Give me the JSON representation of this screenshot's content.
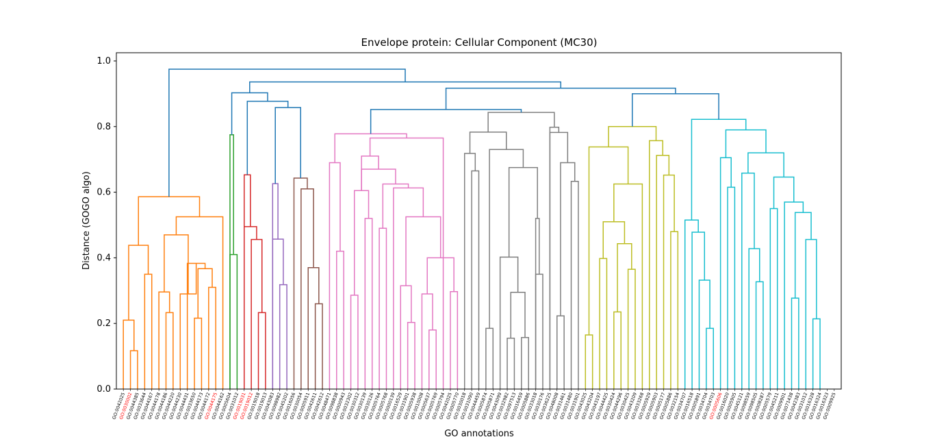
{
  "chart_data": {
    "type": "dendrogram",
    "title": "Envelope protein: Cellular Component (MC30)",
    "xlabel": "GO annotations",
    "ylabel": "Distance (GOGO algo)",
    "ylim": [
      0,
      1.025
    ],
    "yticks": [
      "0.0",
      "0.2",
      "0.4",
      "0.6",
      "0.8",
      "1.0"
    ],
    "ytick_values": [
      0,
      0.2,
      0.4,
      0.6,
      0.8,
      1.0
    ],
    "grid": false,
    "highlight_color": "#ff0000",
    "leaf_color": "#000000",
    "link_color_above": "#1f77b4",
    "leaves": [
      "GO:0042025",
      "GO:0030002",
      "GO:0044385",
      "GO:0033644",
      "GO:0044167",
      "GO:0044178",
      "GO:0044186",
      "GO:0044220",
      "GO:0044230",
      "GO:0044431",
      "GO:0033650",
      "GO:0044173",
      "GO:0044172",
      "GO:0044175",
      "GO:0044162",
      "GO:0005604",
      "GO:0031012",
      "GO:0019031",
      "GO:0019012",
      "GO:0019018",
      "GO:0019013",
      "GO:0043083",
      "GO:0098982",
      "GO:0045202",
      "GO:0016056",
      "GO:0030054",
      "GO:0005911",
      "GO:0042611",
      "GO:0042612",
      "GO:0048471",
      "GO:0098838",
      "GO:0000943",
      "GO:0032302",
      "GO:0030312",
      "GO:0030139",
      "GO:0030126",
      "GO:0005764",
      "GO:0005768",
      "GO:0000139",
      "GO:0016529",
      "GO:0031901",
      "GO:0005938",
      "GO:0010008",
      "GO:0005637",
      "GO:0005769",
      "GO:0005794",
      "GO:0042025",
      "GO:0005770",
      "GO:0030018",
      "GO:0031090",
      "GO:0044459",
      "GO:0005874",
      "GO:0005871",
      "GO:0043099",
      "GO:0032982",
      "GO:0097513",
      "GO:0016459",
      "GO:0005886",
      "GO:0033018",
      "GO:0030176",
      "GO:0036225",
      "GO:0048008",
      "GO:0031461",
      "GO:0031480",
      "GO:0031901",
      "GO:0043025",
      "GO:0043204",
      "GO:0043197",
      "GO:0044425",
      "GO:0030424",
      "GO:0044296",
      "GO:0030425",
      "GO:0043209",
      "GO:0033268",
      "GO:0005929",
      "GO:0005903",
      "GO:0005177",
      "GO:0005886",
      "GO:0032154",
      "GO:0034707",
      "GO:0016518",
      "GO:0005891",
      "GO:0034704",
      "GO:0034703",
      "GO:0005606",
      "GO:0016020",
      "GO:0005905",
      "GO:0045121",
      "GO:0098559",
      "GO:0098505",
      "GO:0008287",
      "GO:0005579",
      "GO:0045211",
      "GO:0009901",
      "GO:0071438",
      "GO:0042383",
      "GO:0031012",
      "GO:0016328",
      "GO:0016324",
      "GO:0016323",
      "GO:0009925"
    ],
    "highlighted_leaves": [
      1,
      13,
      17,
      18,
      84
    ],
    "clusters": [
      {
        "color": "#ff7f0e",
        "leaves": [
          0,
          14
        ]
      },
      {
        "color": "#2ca02c",
        "leaves": [
          15,
          16
        ]
      },
      {
        "color": "#d62728",
        "leaves": [
          17,
          20
        ]
      },
      {
        "color": "#9467bd",
        "leaves": [
          21,
          23
        ]
      },
      {
        "color": "#8c564b",
        "leaves": [
          24,
          28
        ]
      },
      {
        "color": "#e377c2",
        "leaves": [
          29,
          47
        ]
      },
      {
        "color": "#7f7f7f",
        "leaves": [
          48,
          64
        ]
      },
      {
        "color": "#bcbd22",
        "leaves": [
          65,
          78
        ]
      },
      {
        "color": "#17becf",
        "leaves": [
          79,
          100
        ]
      }
    ],
    "merges": [
      {
        "a": 1,
        "b": 2,
        "h": 0.117,
        "c": "#ff7f0e"
      },
      {
        "a": 0,
        "b": 101,
        "h": 0.21,
        "c": "#ff7f0e"
      },
      {
        "a": 3,
        "b": 4,
        "h": 0.35,
        "c": "#ff7f0e"
      },
      {
        "a": 102,
        "b": 103,
        "h": 0.438,
        "c": "#ff7f0e"
      },
      {
        "a": 6,
        "b": 7,
        "h": 0.233,
        "c": "#ff7f0e"
      },
      {
        "a": 5,
        "b": 105,
        "h": 0.296,
        "c": "#ff7f0e"
      },
      {
        "a": 10,
        "b": 11,
        "h": 0.216,
        "c": "#ff7f0e"
      },
      {
        "a": 12,
        "b": 13,
        "h": 0.31,
        "c": "#ff7f0e"
      },
      {
        "a": 107,
        "b": 108,
        "h": 0.367,
        "c": "#ff7f0e"
      },
      {
        "a": 9,
        "b": 109,
        "h": 0.383,
        "c": "#ff7f0e"
      },
      {
        "a": 8,
        "b": 110,
        "h": 0.29,
        "c": "#ff7f0e"
      },
      {
        "a": 106,
        "b": 111,
        "h": 0.47,
        "c": "#ff7f0e"
      },
      {
        "a": 112,
        "b": 14,
        "h": 0.525,
        "c": "#ff7f0e"
      },
      {
        "a": 104,
        "b": 113,
        "h": 0.586,
        "c": "#ff7f0e"
      },
      {
        "a": 15,
        "b": 16,
        "h": 0.41,
        "c": "#2ca02c"
      },
      {
        "a": 14.5,
        "b": 115,
        "h": 0.775,
        "c": "#2ca02c",
        "note": "ignored"
      },
      {
        "a": 19,
        "b": 20,
        "h": 0.233,
        "c": "#d62728"
      },
      {
        "a": 18,
        "b": 117,
        "h": 0.456,
        "c": "#d62728"
      },
      {
        "a": 17,
        "b": 118,
        "h": 0.495,
        "c": "#d62728"
      },
      {
        "a": 22,
        "b": 23,
        "h": 0.318,
        "c": "#9467bd"
      },
      {
        "a": 21,
        "b": 120,
        "h": 0.457,
        "c": "#9467bd"
      },
      {
        "a": 27,
        "b": 28,
        "h": 0.26,
        "c": "#8c564b"
      },
      {
        "a": 26,
        "b": 122,
        "h": 0.37,
        "c": "#8c564b"
      },
      {
        "a": 25,
        "b": 123,
        "h": 0.61,
        "c": "#8c564b"
      },
      {
        "a": 24,
        "b": 124,
        "h": 0.643,
        "c": "#8c564b"
      }
    ]
  }
}
